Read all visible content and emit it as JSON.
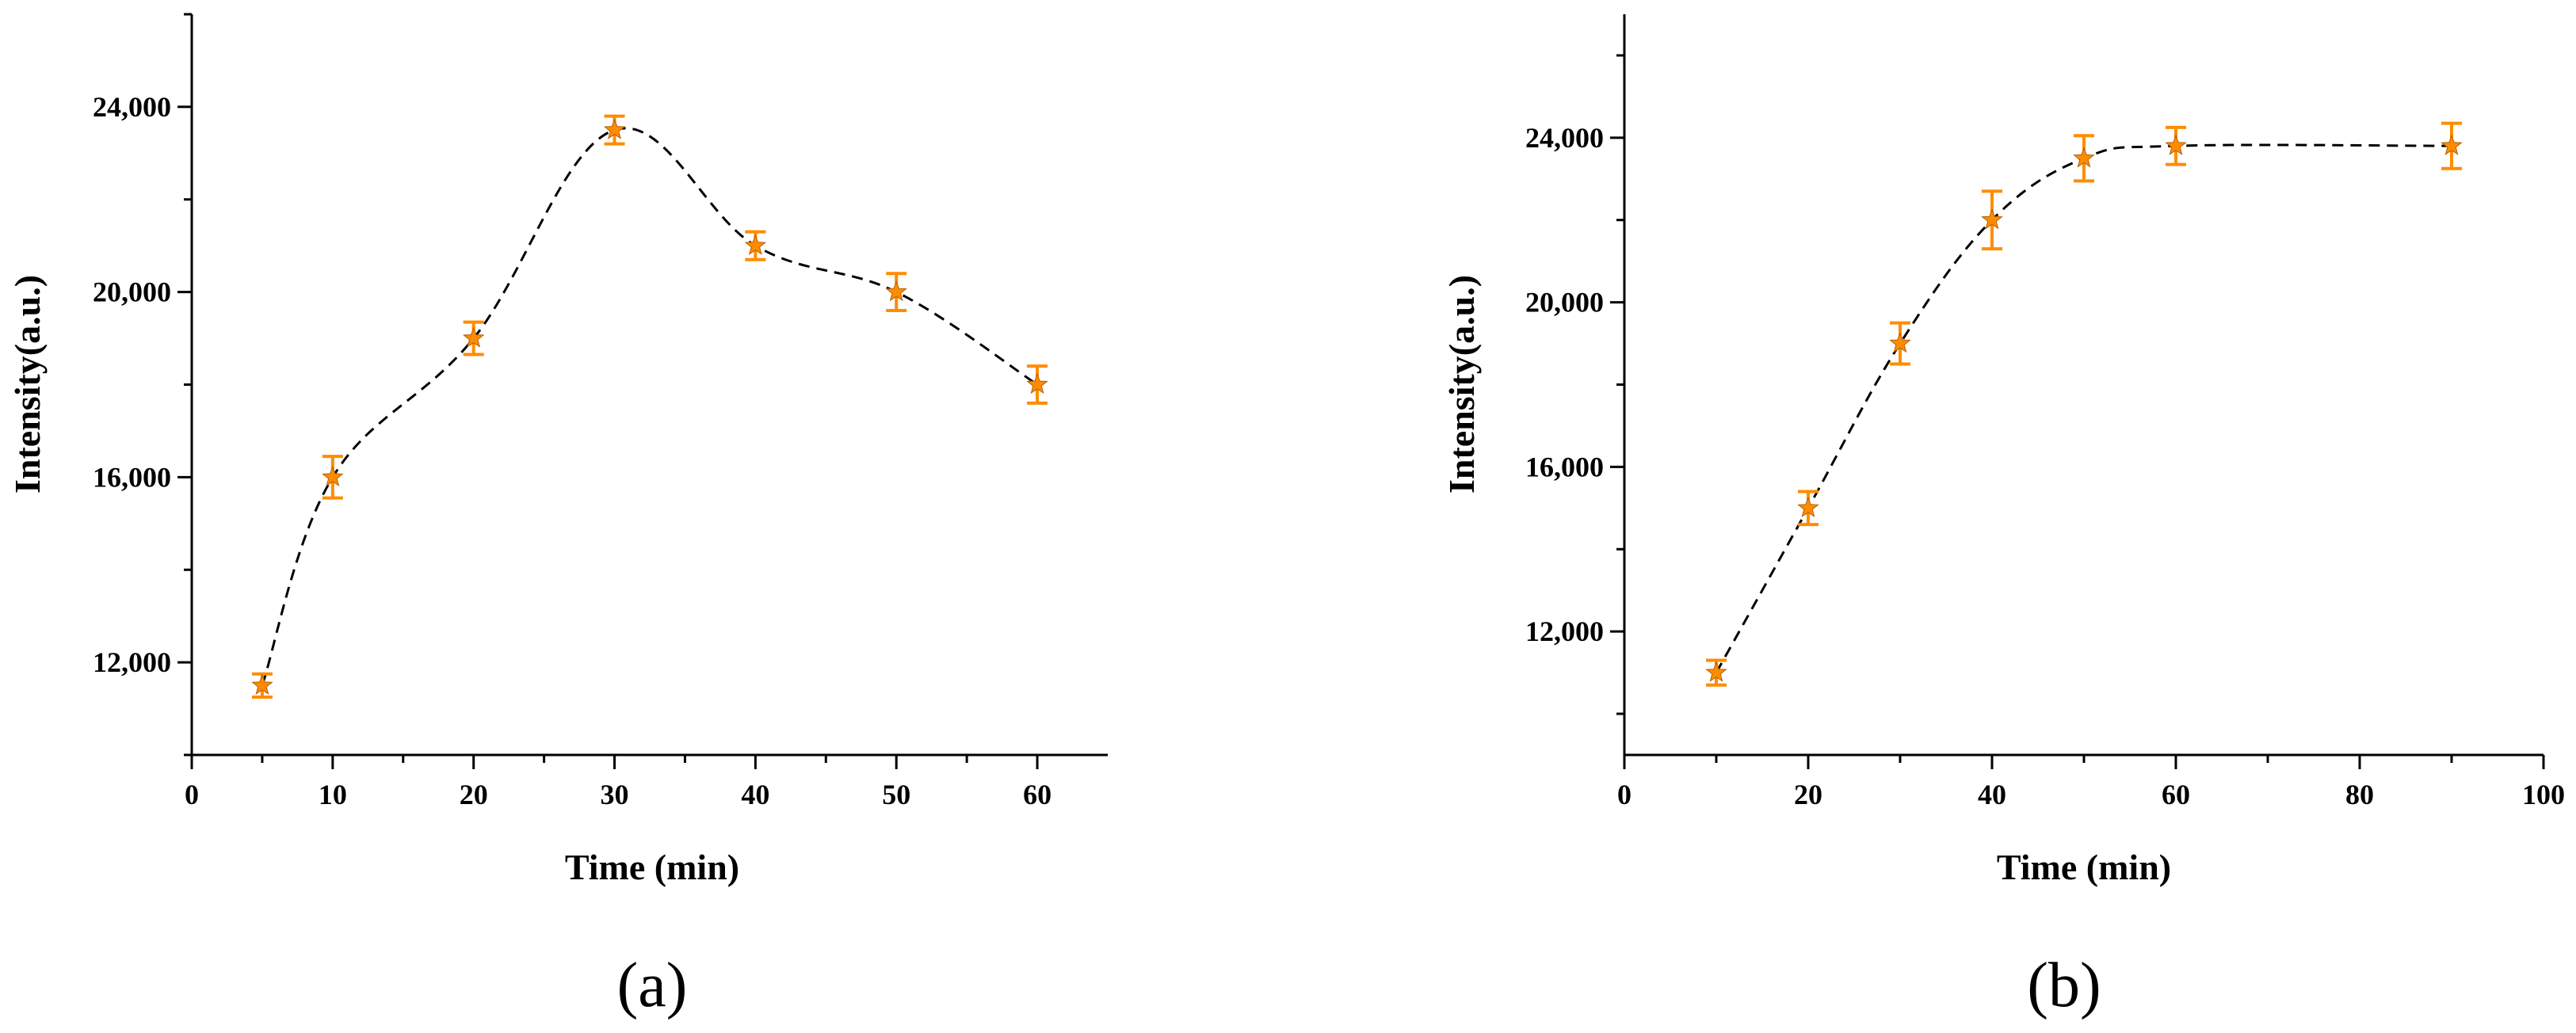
{
  "chart_data": [
    {
      "type": "line",
      "panel_label": "(a)",
      "xlabel": "Time (min)",
      "ylabel": "Intensity(a.u.)",
      "xlim": [
        0,
        65
      ],
      "ylim": [
        10000,
        26000
      ],
      "xticks": [
        0,
        10,
        20,
        30,
        40,
        50,
        60
      ],
      "xtick_labels": [
        "0",
        "10",
        "20",
        "30",
        "40",
        "50",
        "60"
      ],
      "yticks": [
        12000,
        16000,
        20000,
        24000
      ],
      "ytick_labels": [
        "12,000",
        "16,000",
        "20,000",
        "24,000"
      ],
      "x": [
        5,
        10,
        20,
        30,
        40,
        50,
        60
      ],
      "series": [
        {
          "values": [
            11500,
            16000,
            19000,
            23500,
            21000,
            20000,
            18000
          ],
          "errors": [
            250,
            450,
            350,
            300,
            300,
            400,
            400
          ]
        }
      ],
      "marker_color": "#ff8c00",
      "line_style": "dashed",
      "grid": false
    },
    {
      "type": "line",
      "panel_label": "(b)",
      "xlabel": "Time (min)",
      "ylabel": "Intensity(a.u.)",
      "xlim": [
        0,
        100
      ],
      "ylim": [
        9000,
        27000
      ],
      "xticks": [
        0,
        20,
        40,
        60,
        80,
        100
      ],
      "xtick_labels": [
        "0",
        "20",
        "40",
        "60",
        "80",
        "100"
      ],
      "yticks": [
        12000,
        16000,
        20000,
        24000
      ],
      "ytick_labels": [
        "12,000",
        "16,000",
        "20,000",
        "24,000"
      ],
      "x": [
        10,
        20,
        30,
        40,
        50,
        60,
        90
      ],
      "series": [
        {
          "values": [
            11000,
            15000,
            19000,
            22000,
            23500,
            23800,
            23800
          ],
          "errors": [
            300,
            400,
            500,
            700,
            550,
            450,
            550
          ]
        }
      ],
      "marker_color": "#ff8c00",
      "line_style": "dashed",
      "grid": false
    }
  ]
}
